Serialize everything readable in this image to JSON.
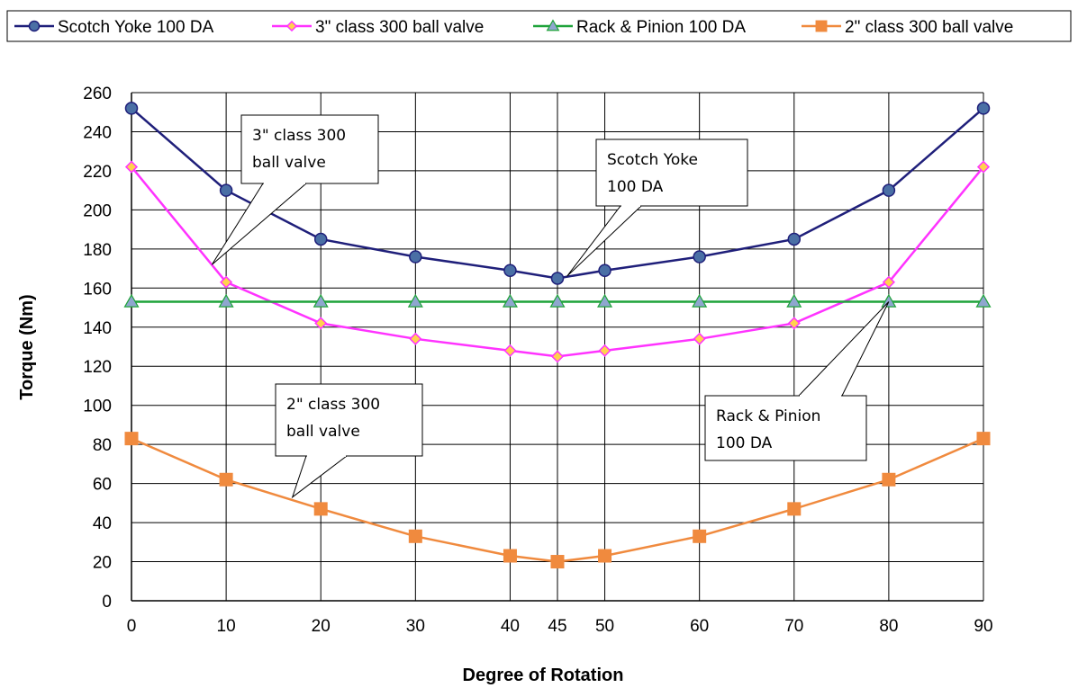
{
  "chart_data": {
    "type": "line",
    "xlabel": "Degree of Rotation",
    "ylabel": "Torque (Nm)",
    "x": [
      0,
      10,
      20,
      30,
      40,
      45,
      50,
      60,
      70,
      80,
      90
    ],
    "xlim": [
      0,
      90
    ],
    "ylim": [
      0,
      260
    ],
    "yticks": [
      0,
      20,
      40,
      60,
      80,
      100,
      120,
      140,
      160,
      180,
      200,
      220,
      240,
      260
    ],
    "grid": true,
    "legend_position": "top",
    "series": [
      {
        "name": "Scotch Yoke 100 DA",
        "color": "#1F1F7A",
        "marker": "circle",
        "marker_fill": "#4A6FA5",
        "values": [
          252,
          210,
          185,
          176,
          169,
          165,
          169,
          176,
          185,
          210,
          252
        ]
      },
      {
        "name": "3\" class 300 ball valve",
        "color": "#FF33FF",
        "marker": "diamond",
        "marker_fill": "#FFD24D",
        "values": [
          222,
          163,
          142,
          134,
          128,
          125,
          128,
          134,
          142,
          163,
          222
        ]
      },
      {
        "name": "Rack & Pinion 100 DA",
        "color": "#1FA33A",
        "marker": "triangle",
        "marker_fill": "#8FA6CF",
        "values": [
          153,
          153,
          153,
          153,
          153,
          153,
          153,
          153,
          153,
          153,
          153
        ]
      },
      {
        "name": "2\" class 300 ball valve",
        "color": "#F08A3E",
        "marker": "square",
        "marker_fill": "#F08A3E",
        "values": [
          83,
          62,
          47,
          33,
          23,
          20,
          23,
          33,
          47,
          62,
          83
        ]
      }
    ],
    "annotations": [
      {
        "lines": [
          "3\" class 300",
          "ball valve"
        ],
        "series": 1,
        "point_x": 8.5,
        "point_y": 172
      },
      {
        "lines": [
          "Scotch Yoke",
          "100 DA"
        ],
        "series": 0,
        "point_x": 46,
        "point_y": 166
      },
      {
        "lines": [
          "Rack & Pinion",
          "100 DA"
        ],
        "series": 2,
        "point_x": 80,
        "point_y": 153
      },
      {
        "lines": [
          "2\" class 300",
          "ball valve"
        ],
        "series": 3,
        "point_x": 17,
        "point_y": 53
      }
    ]
  }
}
